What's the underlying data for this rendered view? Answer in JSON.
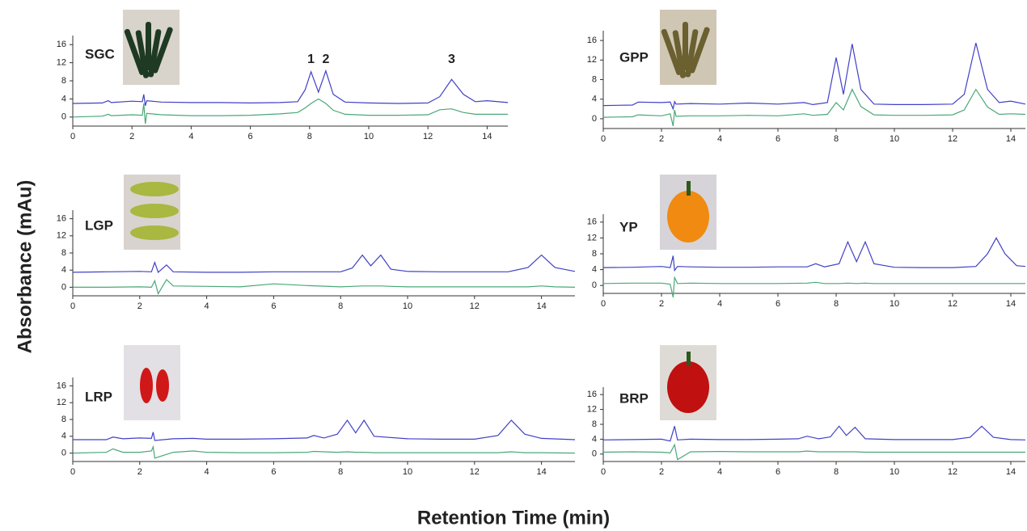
{
  "y_label": "Absorbance (mAu)",
  "x_label": "Retention Time (min)",
  "chart_data": [
    {
      "type": "line",
      "label": "SGC",
      "xlim": [
        0,
        14.7
      ],
      "ylim": [
        -2,
        18
      ],
      "xticks": [
        0,
        2,
        4,
        6,
        8,
        10,
        12,
        14
      ],
      "yticks": [
        0,
        4,
        8,
        12,
        16
      ],
      "annotations": [
        {
          "text": "1",
          "x": 8.05
        },
        {
          "text": "2",
          "x": 8.55
        },
        {
          "text": "3",
          "x": 12.8
        }
      ],
      "x": [
        0,
        1,
        1.2,
        1.3,
        2,
        2.35,
        2.4,
        2.45,
        2.5,
        3,
        4,
        5,
        6,
        7,
        7.6,
        7.85,
        8.05,
        8.3,
        8.55,
        8.8,
        9.2,
        10,
        11,
        12,
        12.4,
        12.8,
        13.2,
        13.6,
        14,
        14.7
      ],
      "series": [
        {
          "color": "#4040c8",
          "values": [
            3,
            3.1,
            3.6,
            3.2,
            3.5,
            3.4,
            5,
            2.5,
            3.6,
            3.3,
            3.2,
            3.2,
            3.1,
            3.2,
            3.4,
            6,
            10,
            5.5,
            10.2,
            5,
            3.3,
            3.1,
            3,
            3.1,
            4.5,
            8.3,
            5,
            3.4,
            3.6,
            3.2
          ]
        },
        {
          "color": "#4aa878",
          "values": [
            0,
            0.2,
            0.6,
            0.3,
            0.5,
            0.4,
            3,
            -1.5,
            0.8,
            0.5,
            0.3,
            0.3,
            0.4,
            0.7,
            1,
            2,
            3,
            4,
            3,
            1.5,
            0.6,
            0.4,
            0.4,
            0.5,
            1.6,
            1.8,
            1,
            0.6,
            0.6,
            0.6
          ]
        }
      ]
    },
    {
      "type": "line",
      "label": "GPP",
      "xlim": [
        0,
        14.5
      ],
      "ylim": [
        -2,
        18
      ],
      "xticks": [
        0,
        2,
        4,
        6,
        8,
        10,
        12,
        14
      ],
      "yticks": [
        0,
        4,
        8,
        12,
        16
      ],
      "x": [
        0,
        1,
        1.2,
        2,
        2.3,
        2.4,
        2.45,
        2.5,
        3,
        4,
        5,
        6,
        6.9,
        7.2,
        7.7,
        8,
        8.25,
        8.55,
        8.85,
        9.3,
        10,
        11,
        12,
        12.4,
        12.8,
        13.2,
        13.6,
        14,
        14.5
      ],
      "series": [
        {
          "color": "#4040c8",
          "values": [
            2.7,
            2.8,
            3.4,
            3.3,
            3.4,
            2,
            3.5,
            3,
            3.1,
            3,
            3.2,
            3,
            3.3,
            2.9,
            3.3,
            12.5,
            5,
            15.3,
            6,
            3,
            2.9,
            2.9,
            3,
            5,
            15.5,
            6,
            3.3,
            3.6,
            3
          ]
        },
        {
          "color": "#4aa878",
          "values": [
            0.3,
            0.4,
            0.8,
            0.6,
            1,
            -1.5,
            1.8,
            0.5,
            0.6,
            0.6,
            0.7,
            0.6,
            1,
            0.7,
            0.9,
            3.3,
            1.8,
            6,
            2.5,
            0.8,
            0.7,
            0.7,
            0.8,
            1.8,
            6,
            2.4,
            0.9,
            1,
            0.9
          ]
        }
      ]
    },
    {
      "type": "line",
      "label": "LGP",
      "xlim": [
        0,
        15
      ],
      "ylim": [
        -2,
        18
      ],
      "xticks": [
        0,
        2,
        4,
        6,
        8,
        10,
        12,
        14
      ],
      "yticks": [
        0,
        4,
        8,
        12,
        16
      ],
      "x": [
        0,
        1,
        2,
        2.35,
        2.45,
        2.55,
        2.8,
        3,
        4,
        5,
        6,
        7,
        8,
        8.35,
        8.65,
        8.9,
        9.2,
        9.5,
        10,
        11,
        12,
        13,
        13.6,
        14,
        14.4,
        15
      ],
      "series": [
        {
          "color": "#4040c8",
          "values": [
            3.5,
            3.6,
            3.7,
            3.6,
            5.8,
            3.5,
            5.2,
            3.6,
            3.5,
            3.5,
            3.6,
            3.6,
            3.6,
            4.5,
            7.5,
            5,
            7.5,
            4.2,
            3.7,
            3.6,
            3.6,
            3.6,
            4.6,
            7.5,
            4.6,
            3.7
          ]
        },
        {
          "color": "#4aa878",
          "values": [
            0,
            0,
            0.1,
            0,
            1.5,
            -1.5,
            1.8,
            0.3,
            0.2,
            0.1,
            0.8,
            0.4,
            0.1,
            0.2,
            0.3,
            0.3,
            0.3,
            0.2,
            0.1,
            0.1,
            0.1,
            0.1,
            0.1,
            0.3,
            0.1,
            0
          ]
        }
      ]
    },
    {
      "type": "line",
      "label": "YP",
      "xlim": [
        0,
        14.5
      ],
      "ylim": [
        -2,
        18
      ],
      "xticks": [
        0,
        2,
        4,
        6,
        8,
        10,
        12,
        14
      ],
      "yticks": [
        0,
        4,
        8,
        12,
        16
      ],
      "x": [
        0,
        1,
        2,
        2.3,
        2.4,
        2.45,
        2.55,
        3,
        4,
        5,
        6,
        7,
        7.3,
        7.6,
        8.1,
        8.4,
        8.7,
        9,
        9.3,
        10,
        11,
        12,
        12.8,
        13.2,
        13.5,
        13.8,
        14.2,
        14.5
      ],
      "series": [
        {
          "color": "#4040c8",
          "values": [
            4.5,
            4.6,
            4.8,
            4.5,
            7.5,
            3.8,
            4.8,
            4.7,
            4.6,
            4.6,
            4.7,
            4.7,
            5.5,
            4.7,
            5.5,
            11,
            6,
            11,
            5.5,
            4.6,
            4.5,
            4.5,
            4.8,
            8,
            12,
            8,
            5,
            4.8
          ]
        },
        {
          "color": "#4aa878",
          "values": [
            0.5,
            0.6,
            0.6,
            0.3,
            -3,
            2,
            0.5,
            0.6,
            0.5,
            0.5,
            0.5,
            0.6,
            0.8,
            0.5,
            0.5,
            0.6,
            0.5,
            0.6,
            0.5,
            0.5,
            0.5,
            0.5,
            0.5,
            0.5,
            0.5,
            0.5,
            0.5,
            0.5
          ]
        }
      ]
    },
    {
      "type": "line",
      "label": "LRP",
      "xlim": [
        0,
        15
      ],
      "ylim": [
        -2,
        18
      ],
      "xticks": [
        0,
        2,
        4,
        6,
        8,
        10,
        12,
        14
      ],
      "yticks": [
        0,
        4,
        8,
        12,
        16
      ],
      "x": [
        0,
        1,
        1.2,
        1.5,
        2,
        2.35,
        2.4,
        2.45,
        3,
        3.6,
        4,
        5,
        6,
        7,
        7.2,
        7.5,
        7.9,
        8.2,
        8.45,
        8.7,
        9,
        10,
        11,
        12,
        12.7,
        13.1,
        13.5,
        14,
        15
      ],
      "series": [
        {
          "color": "#4040c8",
          "values": [
            3.2,
            3.2,
            3.8,
            3.4,
            3.6,
            3.5,
            5,
            3,
            3.4,
            3.5,
            3.3,
            3.3,
            3.4,
            3.6,
            4.2,
            3.6,
            4.5,
            7.8,
            4.8,
            7.8,
            4,
            3.4,
            3.3,
            3.3,
            4.2,
            7.8,
            4.5,
            3.5,
            3.2
          ]
        },
        {
          "color": "#4aa878",
          "values": [
            0,
            0.2,
            1,
            0.2,
            0.2,
            0.5,
            1.5,
            -1.2,
            0.2,
            0.5,
            0.2,
            0.1,
            0.1,
            0.2,
            0.4,
            0.3,
            0.2,
            0.3,
            0.2,
            0.2,
            0.1,
            0.1,
            0.1,
            0.1,
            0.1,
            0.3,
            0.1,
            0.1,
            0
          ]
        }
      ]
    },
    {
      "type": "line",
      "label": "BRP",
      "xlim": [
        0,
        14.5
      ],
      "ylim": [
        -2,
        18
      ],
      "xticks": [
        0,
        2,
        4,
        6,
        8,
        10,
        12,
        14
      ],
      "yticks": [
        0,
        4,
        8,
        12,
        16
      ],
      "x": [
        0,
        1,
        2,
        2.3,
        2.45,
        2.55,
        3,
        4,
        5,
        6,
        6.7,
        7,
        7.4,
        7.8,
        8.1,
        8.35,
        8.65,
        9,
        10,
        11,
        12,
        12.6,
        13,
        13.4,
        14,
        14.5
      ],
      "series": [
        {
          "color": "#4040c8",
          "values": [
            3.8,
            3.9,
            4,
            3.5,
            7.5,
            3.8,
            4,
            3.9,
            3.9,
            4,
            4.1,
            4.8,
            4.1,
            4.6,
            7.5,
            5,
            7.2,
            4.1,
            3.9,
            3.9,
            3.9,
            4.5,
            7.5,
            4.5,
            3.9,
            3.8
          ]
        },
        {
          "color": "#4aa878",
          "values": [
            0.5,
            0.6,
            0.5,
            0.3,
            2.5,
            -1.5,
            0.6,
            0.7,
            0.6,
            0.6,
            0.6,
            0.8,
            0.6,
            0.6,
            0.6,
            0.6,
            0.6,
            0.5,
            0.5,
            0.5,
            0.5,
            0.5,
            0.5,
            0.5,
            0.5,
            0.5
          ]
        }
      ]
    }
  ]
}
